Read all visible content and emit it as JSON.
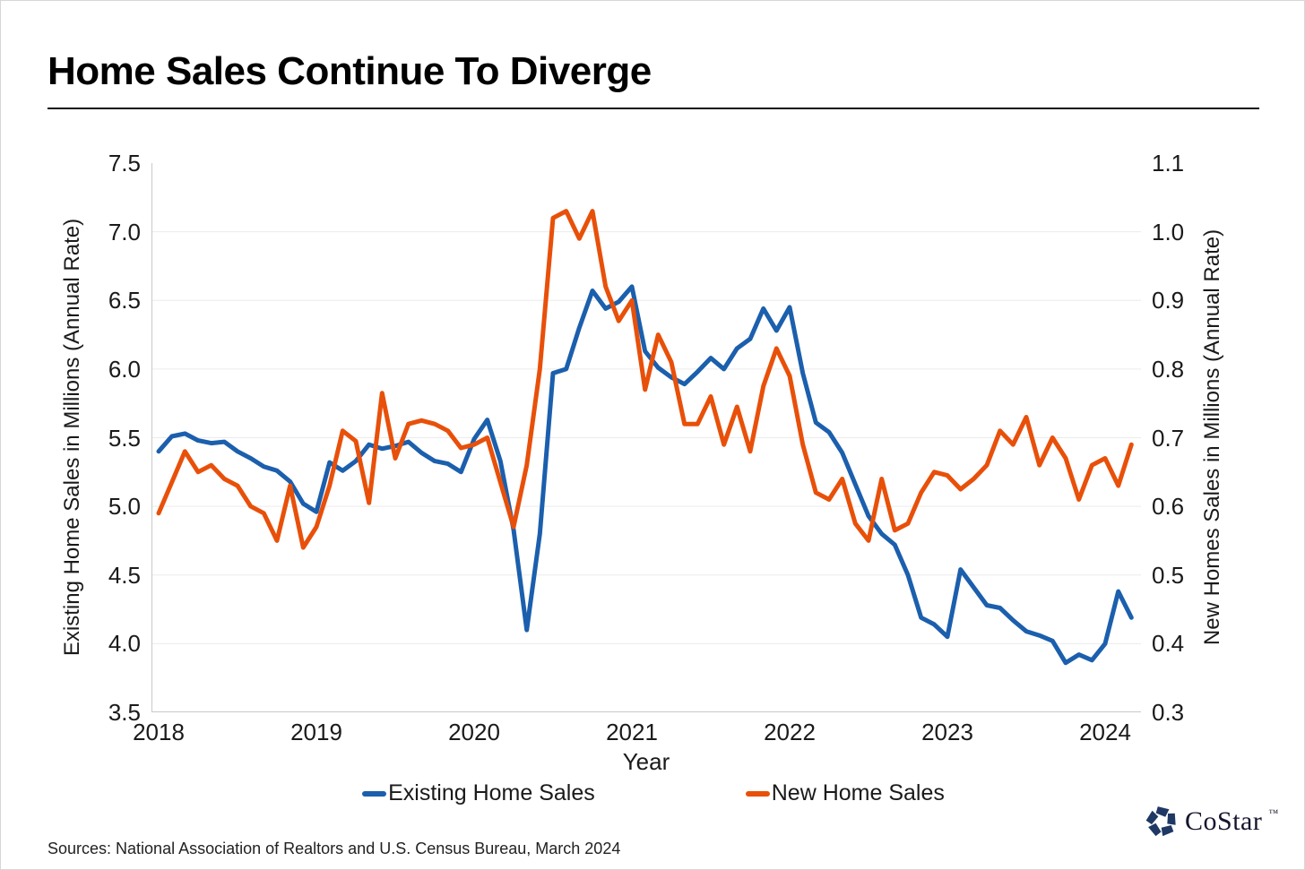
{
  "page": {
    "title": "Home Sales Continue To Diverge",
    "sources": "Sources: National Association of Realtors and U.S. Census Bureau, March 2024",
    "brand": {
      "name": "CoStar",
      "tm": "™"
    }
  },
  "chart_data": {
    "type": "line",
    "title": "Home Sales Continue To Diverge",
    "grid": true,
    "legend_position": "bottom",
    "x_axis": {
      "label": "Year",
      "tick_labels": [
        "2018",
        "2019",
        "2020",
        "2021",
        "2022",
        "2023",
        "2024"
      ]
    },
    "y_left": {
      "label": "Existing Home Sales in Millions (Annual Rate)",
      "range": [
        3.5,
        7.5
      ],
      "ticks": [
        "7.5",
        "7.0",
        "6.5",
        "6.0",
        "5.5",
        "5.0",
        "4.5",
        "4.0",
        "3.5"
      ]
    },
    "y_right": {
      "label": "New Homes Sales in Millions (Annual Rate)",
      "range": [
        0.3,
        1.1
      ],
      "ticks": [
        "1.1",
        "1.0",
        "0.9",
        "0.8",
        "0.7",
        "0.6",
        "0.5",
        "0.4",
        "0.3"
      ]
    },
    "months": [
      "2018-01",
      "2018-02",
      "2018-03",
      "2018-04",
      "2018-05",
      "2018-06",
      "2018-07",
      "2018-08",
      "2018-09",
      "2018-10",
      "2018-11",
      "2018-12",
      "2019-01",
      "2019-02",
      "2019-03",
      "2019-04",
      "2019-05",
      "2019-06",
      "2019-07",
      "2019-08",
      "2019-09",
      "2019-10",
      "2019-11",
      "2019-12",
      "2020-01",
      "2020-02",
      "2020-03",
      "2020-04",
      "2020-05",
      "2020-06",
      "2020-07",
      "2020-08",
      "2020-09",
      "2020-10",
      "2020-11",
      "2020-12",
      "2021-01",
      "2021-02",
      "2021-03",
      "2021-04",
      "2021-05",
      "2021-06",
      "2021-07",
      "2021-08",
      "2021-09",
      "2021-10",
      "2021-11",
      "2021-12",
      "2022-01",
      "2022-02",
      "2022-03",
      "2022-04",
      "2022-05",
      "2022-06",
      "2022-07",
      "2022-08",
      "2022-09",
      "2022-10",
      "2022-11",
      "2022-12",
      "2023-01",
      "2023-02",
      "2023-03",
      "2023-04",
      "2023-05",
      "2023-06",
      "2023-07",
      "2023-08",
      "2023-09",
      "2023-10",
      "2023-11",
      "2023-12",
      "2024-01",
      "2024-02",
      "2024-03"
    ],
    "series": [
      {
        "name": "Existing Home Sales",
        "axis": "left",
        "color": "#1B5FAD",
        "values": [
          5.4,
          5.51,
          5.53,
          5.48,
          5.46,
          5.47,
          5.4,
          5.35,
          5.29,
          5.26,
          5.18,
          5.02,
          4.96,
          5.32,
          5.26,
          5.33,
          5.45,
          5.42,
          5.44,
          5.47,
          5.39,
          5.33,
          5.31,
          5.25,
          5.49,
          5.63,
          5.33,
          4.83,
          4.1,
          4.8,
          5.97,
          6.0,
          6.3,
          6.57,
          6.44,
          6.49,
          6.6,
          6.13,
          6.01,
          5.94,
          5.89,
          5.98,
          6.08,
          6.0,
          6.15,
          6.22,
          6.44,
          6.28,
          6.45,
          5.97,
          5.61,
          5.54,
          5.39,
          5.16,
          4.93,
          4.8,
          4.72,
          4.5,
          4.19,
          4.14,
          4.05,
          4.54,
          4.41,
          4.28,
          4.26,
          4.17,
          4.09,
          4.06,
          4.02,
          3.86,
          3.92,
          3.88,
          4.0,
          4.38,
          4.19
        ]
      },
      {
        "name": "New Home Sales",
        "axis": "right",
        "color": "#E8500A",
        "values": [
          0.59,
          0.635,
          0.68,
          0.65,
          0.66,
          0.64,
          0.63,
          0.6,
          0.59,
          0.55,
          0.63,
          0.54,
          0.57,
          0.63,
          0.71,
          0.695,
          0.605,
          0.765,
          0.67,
          0.72,
          0.725,
          0.72,
          0.71,
          0.685,
          0.69,
          0.7,
          0.635,
          0.57,
          0.66,
          0.8,
          1.02,
          1.03,
          0.99,
          1.03,
          0.92,
          0.87,
          0.9,
          0.77,
          0.85,
          0.81,
          0.72,
          0.72,
          0.76,
          0.69,
          0.745,
          0.68,
          0.775,
          0.83,
          0.79,
          0.69,
          0.62,
          0.61,
          0.64,
          0.575,
          0.55,
          0.64,
          0.565,
          0.575,
          0.62,
          0.65,
          0.645,
          0.625,
          0.64,
          0.66,
          0.71,
          0.69,
          0.73,
          0.66,
          0.7,
          0.67,
          0.61,
          0.66,
          0.67,
          0.63,
          0.69
        ]
      }
    ]
  }
}
